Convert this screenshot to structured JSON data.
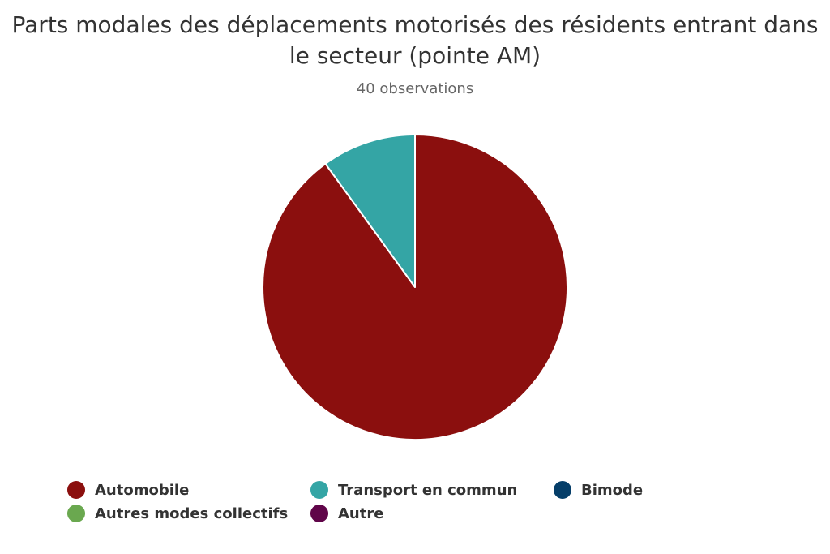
{
  "chart_data": {
    "type": "pie",
    "title": "Parts modales des déplacements motorisés des résidents entrant dans le secteur (pointe AM)",
    "subtitle": "40 observations",
    "series": [
      {
        "data": [
          {
            "name": "Automobile",
            "value": 90,
            "color": "#8b0f0e"
          },
          {
            "name": "Transport en commun",
            "value": 10,
            "color": "#34a5a5"
          },
          {
            "name": "Bimode",
            "value": 0,
            "color": "#053e69"
          },
          {
            "name": "Autres modes collectifs",
            "value": 0,
            "color": "#6aa84f"
          },
          {
            "name": "Autre",
            "value": 0,
            "color": "#600549"
          }
        ]
      }
    ],
    "legend_position": "bottom"
  }
}
